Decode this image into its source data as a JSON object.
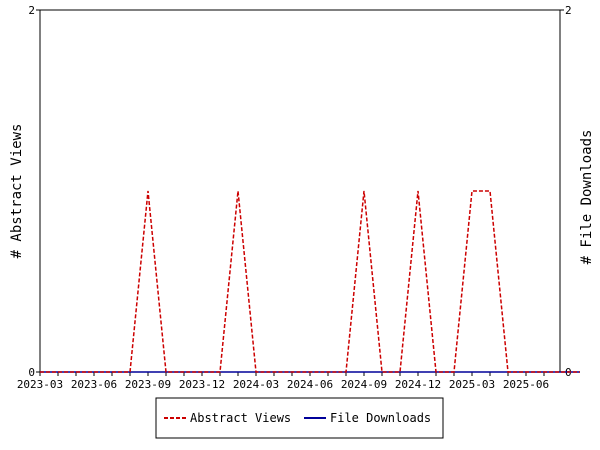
{
  "chart_data": {
    "type": "line",
    "x_tick_labels": [
      "2023-03",
      "2023-06",
      "2023-09",
      "2023-12",
      "2024-03",
      "2024-06",
      "2024-09",
      "2024-12",
      "2025-03",
      "2025-06"
    ],
    "x": [
      "2023-03",
      "2023-04",
      "2023-05",
      "2023-06",
      "2023-07",
      "2023-08",
      "2023-09",
      "2023-10",
      "2023-11",
      "2023-12",
      "2024-01",
      "2024-02",
      "2024-03",
      "2024-04",
      "2024-05",
      "2024-06",
      "2024-07",
      "2024-08",
      "2024-09",
      "2024-10",
      "2024-11",
      "2024-12",
      "2025-01",
      "2025-02",
      "2025-03",
      "2025-04",
      "2025-05",
      "2025-06",
      "2025-07",
      "2025-08",
      "2025-09"
    ],
    "series": [
      {
        "name": "Abstract Views",
        "color": "#cc0000",
        "dashed": true,
        "values": [
          0,
          0,
          0,
          0,
          0,
          0,
          1,
          0,
          0,
          0,
          0,
          1,
          0,
          0,
          0,
          0,
          0,
          0,
          1,
          0,
          0,
          1,
          0,
          0,
          1,
          1,
          0,
          0,
          0,
          0,
          0
        ]
      },
      {
        "name": "File Downloads",
        "color": "#000099",
        "dashed": false,
        "values": [
          0,
          0,
          0,
          0,
          0,
          0,
          0,
          0,
          0,
          0,
          0,
          0,
          0,
          0,
          0,
          0,
          0,
          0,
          0,
          0,
          0,
          0,
          0,
          0,
          0,
          0,
          0,
          0,
          0,
          0,
          0
        ]
      }
    ],
    "ylabel": "# Abstract Views",
    "ylabel_right": "# File Downloads",
    "ylim": [
      0,
      2
    ],
    "y_tick_labels": [
      "0",
      "2"
    ],
    "y_right_tick_labels": [
      "0",
      "2"
    ],
    "grid": false,
    "legend_position": "bottom"
  }
}
